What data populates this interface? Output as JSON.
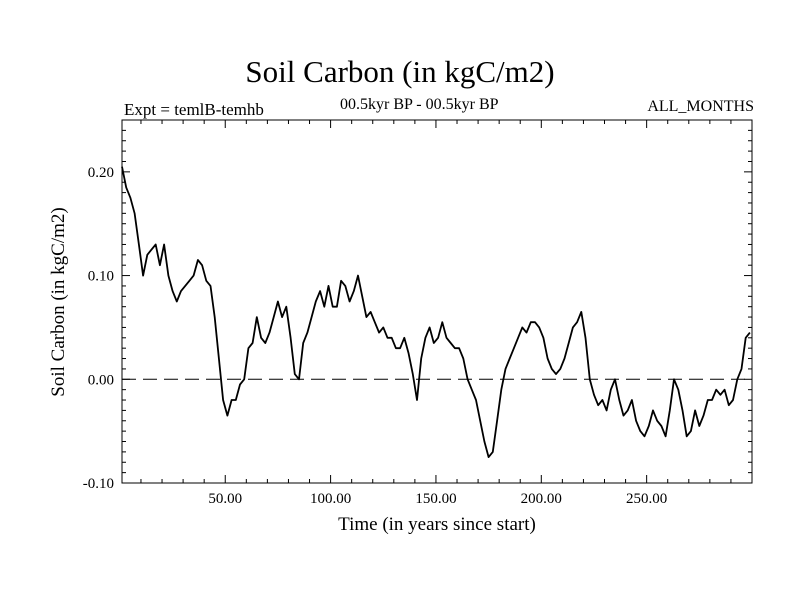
{
  "header": {
    "title": "Soil Carbon (in kgC/m2)",
    "expt": "Expt = temlB-temhb",
    "period": "00.5kyr BP - 00.5kyr BP",
    "months": "ALL_MONTHS"
  },
  "chart_data": {
    "type": "line",
    "title": "Soil Carbon (in kgC/m2)",
    "xlabel": "Time (in years since start)",
    "ylabel": "Soil Carbon (in kgC/m2)",
    "xlim": [
      1,
      300
    ],
    "ylim": [
      -0.1,
      0.25
    ],
    "x_tick_labels": [
      "50.00",
      "100.00",
      "150.00",
      "200.00",
      "250.00"
    ],
    "x_tick_values": [
      50,
      100,
      150,
      200,
      250
    ],
    "y_tick_labels": [
      "-0.10",
      "0.00",
      "0.10",
      "0.20"
    ],
    "y_tick_values": [
      -0.1,
      0.0,
      0.1,
      0.2
    ],
    "zero_line": "dashed",
    "grid": false,
    "series": [
      {
        "x": [
          1,
          3,
          5,
          7,
          9,
          11,
          13,
          15,
          17,
          19,
          21,
          23,
          25,
          27,
          29,
          31,
          33,
          35,
          37,
          39,
          41,
          43,
          45,
          47,
          49,
          51,
          53,
          55,
          57,
          59,
          61,
          63,
          65,
          67,
          69,
          71,
          73,
          75,
          77,
          79,
          81,
          83,
          85,
          87,
          89,
          91,
          93,
          95,
          97,
          99,
          101,
          103,
          105,
          107,
          109,
          111,
          113,
          115,
          117,
          119,
          121,
          123,
          125,
          127,
          129,
          131,
          133,
          135,
          137,
          139,
          141,
          143,
          145,
          147,
          149,
          151,
          153,
          155,
          157,
          159,
          161,
          163,
          165,
          167,
          169,
          171,
          173,
          175,
          177,
          179,
          181,
          183,
          185,
          187,
          189,
          191,
          193,
          195,
          197,
          199,
          201,
          203,
          205,
          207,
          209,
          211,
          213,
          215,
          217,
          219,
          221,
          223,
          225,
          227,
          229,
          231,
          233,
          235,
          237,
          239,
          241,
          243,
          245,
          247,
          249,
          251,
          253,
          255,
          257,
          259,
          261,
          263,
          265,
          267,
          269,
          271,
          273,
          275,
          277,
          279,
          281,
          283,
          285,
          287,
          289,
          291,
          293,
          295,
          297,
          299
        ],
        "y": [
          0.205,
          0.185,
          0.175,
          0.16,
          0.13,
          0.1,
          0.12,
          0.125,
          0.13,
          0.11,
          0.13,
          0.1,
          0.085,
          0.075,
          0.085,
          0.09,
          0.095,
          0.1,
          0.115,
          0.11,
          0.095,
          0.09,
          0.06,
          0.02,
          -0.02,
          -0.035,
          -0.02,
          -0.02,
          -0.005,
          0.0,
          0.03,
          0.035,
          0.06,
          0.04,
          0.035,
          0.045,
          0.06,
          0.075,
          0.06,
          0.07,
          0.04,
          0.005,
          0.0,
          0.035,
          0.045,
          0.06,
          0.075,
          0.085,
          0.07,
          0.09,
          0.07,
          0.07,
          0.095,
          0.09,
          0.075,
          0.085,
          0.1,
          0.08,
          0.06,
          0.065,
          0.055,
          0.045,
          0.05,
          0.04,
          0.04,
          0.03,
          0.03,
          0.04,
          0.025,
          0.005,
          -0.02,
          0.02,
          0.04,
          0.05,
          0.035,
          0.04,
          0.055,
          0.04,
          0.035,
          0.03,
          0.03,
          0.02,
          0.0,
          -0.01,
          -0.02,
          -0.04,
          -0.06,
          -0.075,
          -0.07,
          -0.04,
          -0.01,
          0.01,
          0.02,
          0.03,
          0.04,
          0.05,
          0.045,
          0.055,
          0.055,
          0.05,
          0.04,
          0.02,
          0.01,
          0.005,
          0.01,
          0.02,
          0.035,
          0.05,
          0.055,
          0.065,
          0.04,
          0.0,
          -0.015,
          -0.025,
          -0.02,
          -0.03,
          -0.01,
          0.0,
          -0.02,
          -0.035,
          -0.03,
          -0.02,
          -0.04,
          -0.05,
          -0.055,
          -0.045,
          -0.03,
          -0.04,
          -0.045,
          -0.055,
          -0.03,
          0.0,
          -0.01,
          -0.03,
          -0.055,
          -0.05,
          -0.03,
          -0.045,
          -0.035,
          -0.02,
          -0.02,
          -0.01,
          -0.015,
          -0.01,
          -0.025,
          -0.02,
          0.0,
          0.01,
          0.04,
          0.045
        ]
      }
    ]
  }
}
